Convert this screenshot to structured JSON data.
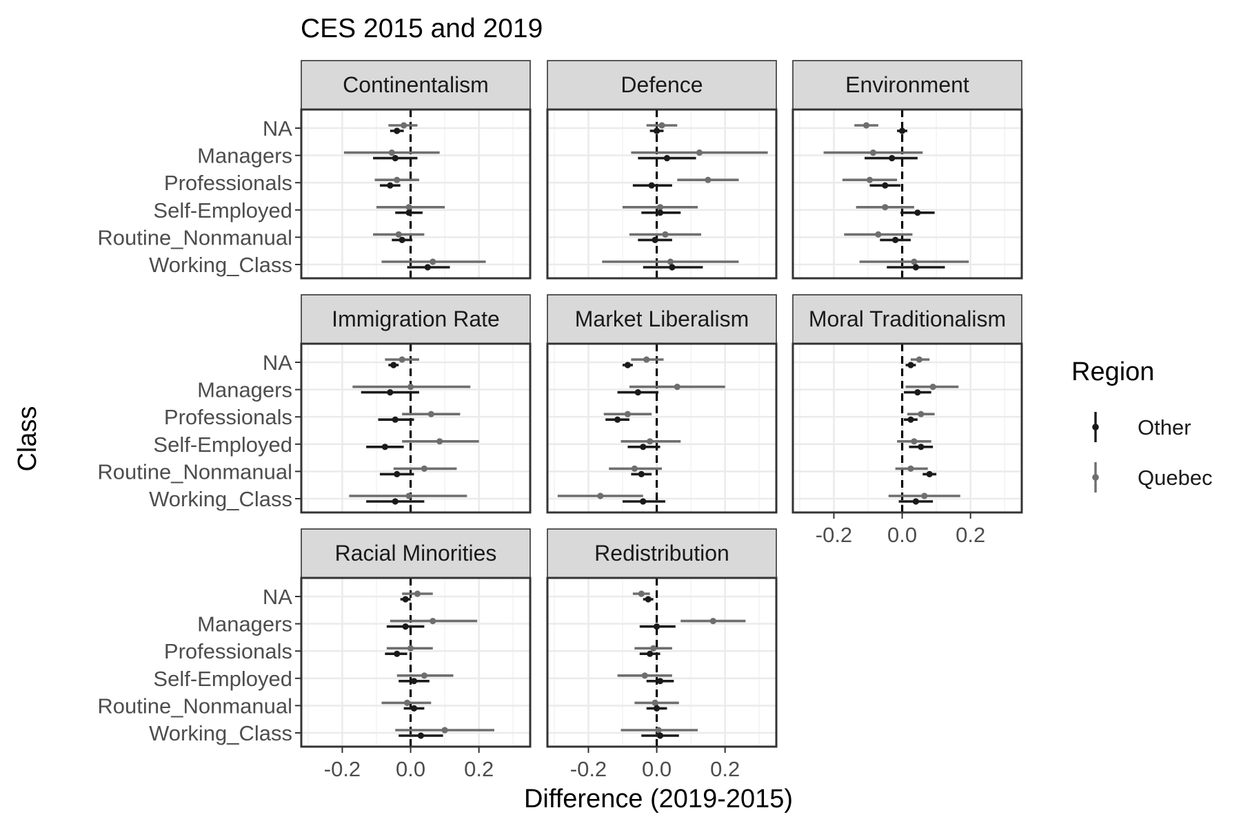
{
  "chart_data": {
    "type": "scatter",
    "subtype": "faceted point-range (dot-and-whisker) plot",
    "title": "CES 2015 and 2019",
    "xlabel": "Difference (2019-2015)",
    "ylabel": "Class",
    "xlim": [
      -0.32,
      0.35
    ],
    "x_ticks": [
      -0.2,
      0.0,
      0.2
    ],
    "x_tick_labels": [
      "-0.2",
      "0.0",
      "0.2"
    ],
    "categories": [
      "NA",
      "Managers",
      "Professionals",
      "Self-Employed",
      "Routine_Nonmanual",
      "Working_Class"
    ],
    "reference_line": {
      "x": 0,
      "style": "dashed"
    },
    "grid": true,
    "legend": {
      "title": "Region",
      "position": "right",
      "items": [
        {
          "label": "Other",
          "color": "#1a1a1a"
        },
        {
          "label": "Quebec",
          "color": "#6e6e6e"
        }
      ]
    },
    "colors": {
      "Other": "#1a1a1a",
      "Quebec": "#6e6e6e",
      "strip": "#d9d9d9",
      "panel_border": "#333333",
      "grid": "#ebebeb"
    },
    "facets": [
      {
        "label": "Continentalism",
        "series": [
          {
            "name": "Other",
            "points": [
              {
                "y": "NA",
                "x": -0.04,
                "lo": -0.06,
                "hi": -0.02
              },
              {
                "y": "Managers",
                "x": -0.045,
                "lo": -0.11,
                "hi": 0.02
              },
              {
                "y": "Professionals",
                "x": -0.06,
                "lo": -0.09,
                "hi": -0.03
              },
              {
                "y": "Self-Employed",
                "x": -0.005,
                "lo": -0.045,
                "hi": 0.035
              },
              {
                "y": "Routine_Nonmanual",
                "x": -0.025,
                "lo": -0.055,
                "hi": 0.005
              },
              {
                "y": "Working_Class",
                "x": 0.05,
                "lo": -0.01,
                "hi": 0.115
              }
            ]
          },
          {
            "name": "Quebec",
            "points": [
              {
                "y": "NA",
                "x": -0.02,
                "lo": -0.065,
                "hi": 0.02
              },
              {
                "y": "Managers",
                "x": -0.055,
                "lo": -0.195,
                "hi": 0.085
              },
              {
                "y": "Professionals",
                "x": -0.04,
                "lo": -0.105,
                "hi": 0.025
              },
              {
                "y": "Self-Employed",
                "x": -0.005,
                "lo": -0.1,
                "hi": 0.1
              },
              {
                "y": "Routine_Nonmanual",
                "x": -0.035,
                "lo": -0.11,
                "hi": 0.04
              },
              {
                "y": "Working_Class",
                "x": 0.065,
                "lo": -0.085,
                "hi": 0.22
              }
            ]
          }
        ]
      },
      {
        "label": "Defence",
        "series": [
          {
            "name": "Other",
            "points": [
              {
                "y": "NA",
                "x": 0.0,
                "lo": -0.02,
                "hi": 0.02
              },
              {
                "y": "Managers",
                "x": 0.03,
                "lo": -0.055,
                "hi": 0.115
              },
              {
                "y": "Professionals",
                "x": -0.015,
                "lo": -0.07,
                "hi": 0.045
              },
              {
                "y": "Self-Employed",
                "x": 0.01,
                "lo": -0.045,
                "hi": 0.07
              },
              {
                "y": "Routine_Nonmanual",
                "x": -0.005,
                "lo": -0.055,
                "hi": 0.045
              },
              {
                "y": "Working_Class",
                "x": 0.045,
                "lo": -0.04,
                "hi": 0.135
              }
            ]
          },
          {
            "name": "Quebec",
            "points": [
              {
                "y": "NA",
                "x": 0.015,
                "lo": -0.03,
                "hi": 0.06
              },
              {
                "y": "Managers",
                "x": 0.125,
                "lo": -0.075,
                "hi": 0.325
              },
              {
                "y": "Professionals",
                "x": 0.15,
                "lo": 0.06,
                "hi": 0.24
              },
              {
                "y": "Self-Employed",
                "x": 0.01,
                "lo": -0.1,
                "hi": 0.12
              },
              {
                "y": "Routine_Nonmanual",
                "x": 0.025,
                "lo": -0.08,
                "hi": 0.13
              },
              {
                "y": "Working_Class",
                "x": 0.04,
                "lo": -0.16,
                "hi": 0.24
              }
            ]
          }
        ]
      },
      {
        "label": "Environment",
        "series": [
          {
            "name": "Other",
            "points": [
              {
                "y": "NA",
                "x": 0.0,
                "lo": -0.015,
                "hi": 0.015
              },
              {
                "y": "Managers",
                "x": -0.03,
                "lo": -0.11,
                "hi": 0.045
              },
              {
                "y": "Professionals",
                "x": -0.05,
                "lo": -0.095,
                "hi": -0.005
              },
              {
                "y": "Self-Employed",
                "x": 0.045,
                "lo": -0.005,
                "hi": 0.095
              },
              {
                "y": "Routine_Nonmanual",
                "x": -0.02,
                "lo": -0.065,
                "hi": 0.025
              },
              {
                "y": "Working_Class",
                "x": 0.04,
                "lo": -0.045,
                "hi": 0.125
              }
            ]
          },
          {
            "name": "Quebec",
            "points": [
              {
                "y": "NA",
                "x": -0.105,
                "lo": -0.14,
                "hi": -0.07
              },
              {
                "y": "Managers",
                "x": -0.085,
                "lo": -0.23,
                "hi": 0.06
              },
              {
                "y": "Professionals",
                "x": -0.095,
                "lo": -0.175,
                "hi": -0.015
              },
              {
                "y": "Self-Employed",
                "x": -0.05,
                "lo": -0.135,
                "hi": 0.035
              },
              {
                "y": "Routine_Nonmanual",
                "x": -0.07,
                "lo": -0.17,
                "hi": 0.03
              },
              {
                "y": "Working_Class",
                "x": 0.035,
                "lo": -0.125,
                "hi": 0.195
              }
            ]
          }
        ]
      },
      {
        "label": "Immigration Rate",
        "series": [
          {
            "name": "Other",
            "points": [
              {
                "y": "NA",
                "x": -0.05,
                "lo": -0.065,
                "hi": -0.035
              },
              {
                "y": "Managers",
                "x": -0.06,
                "lo": -0.145,
                "hi": 0.025
              },
              {
                "y": "Professionals",
                "x": -0.045,
                "lo": -0.095,
                "hi": 0.01
              },
              {
                "y": "Self-Employed",
                "x": -0.075,
                "lo": -0.13,
                "hi": -0.02
              },
              {
                "y": "Routine_Nonmanual",
                "x": -0.04,
                "lo": -0.09,
                "hi": 0.01
              },
              {
                "y": "Working_Class",
                "x": -0.045,
                "lo": -0.13,
                "hi": 0.04
              }
            ]
          },
          {
            "name": "Quebec",
            "points": [
              {
                "y": "NA",
                "x": -0.025,
                "lo": -0.075,
                "hi": 0.025
              },
              {
                "y": "Managers",
                "x": 0.0,
                "lo": -0.17,
                "hi": 0.175
              },
              {
                "y": "Professionals",
                "x": 0.06,
                "lo": -0.025,
                "hi": 0.145
              },
              {
                "y": "Self-Employed",
                "x": 0.085,
                "lo": -0.025,
                "hi": 0.2
              },
              {
                "y": "Routine_Nonmanual",
                "x": 0.04,
                "lo": -0.05,
                "hi": 0.135
              },
              {
                "y": "Working_Class",
                "x": -0.005,
                "lo": -0.18,
                "hi": 0.165
              }
            ]
          }
        ]
      },
      {
        "label": "Market Liberalism",
        "series": [
          {
            "name": "Other",
            "points": [
              {
                "y": "NA",
                "x": -0.085,
                "lo": -0.1,
                "hi": -0.07
              },
              {
                "y": "Managers",
                "x": -0.055,
                "lo": -0.115,
                "hi": 0.005
              },
              {
                "y": "Professionals",
                "x": -0.115,
                "lo": -0.15,
                "hi": -0.08
              },
              {
                "y": "Self-Employed",
                "x": -0.04,
                "lo": -0.085,
                "hi": 0.01
              },
              {
                "y": "Routine_Nonmanual",
                "x": -0.045,
                "lo": -0.075,
                "hi": -0.015
              },
              {
                "y": "Working_Class",
                "x": -0.04,
                "lo": -0.1,
                "hi": 0.025
              }
            ]
          },
          {
            "name": "Quebec",
            "points": [
              {
                "y": "NA",
                "x": -0.03,
                "lo": -0.075,
                "hi": 0.02
              },
              {
                "y": "Managers",
                "x": 0.06,
                "lo": -0.08,
                "hi": 0.2
              },
              {
                "y": "Professionals",
                "x": -0.085,
                "lo": -0.155,
                "hi": -0.015
              },
              {
                "y": "Self-Employed",
                "x": -0.02,
                "lo": -0.105,
                "hi": 0.07
              },
              {
                "y": "Routine_Nonmanual",
                "x": -0.065,
                "lo": -0.14,
                "hi": 0.015
              },
              {
                "y": "Working_Class",
                "x": -0.165,
                "lo": -0.29,
                "hi": -0.04
              }
            ]
          }
        ]
      },
      {
        "label": "Moral Traditionalism",
        "series": [
          {
            "name": "Other",
            "points": [
              {
                "y": "NA",
                "x": 0.025,
                "lo": 0.01,
                "hi": 0.04
              },
              {
                "y": "Managers",
                "x": 0.045,
                "lo": 0.005,
                "hi": 0.085
              },
              {
                "y": "Professionals",
                "x": 0.025,
                "lo": 0.005,
                "hi": 0.045
              },
              {
                "y": "Self-Employed",
                "x": 0.055,
                "lo": 0.02,
                "hi": 0.09
              },
              {
                "y": "Routine_Nonmanual",
                "x": 0.08,
                "lo": 0.06,
                "hi": 0.1
              },
              {
                "y": "Working_Class",
                "x": 0.04,
                "lo": -0.01,
                "hi": 0.09
              }
            ]
          },
          {
            "name": "Quebec",
            "points": [
              {
                "y": "NA",
                "x": 0.05,
                "lo": 0.025,
                "hi": 0.08
              },
              {
                "y": "Managers",
                "x": 0.09,
                "lo": 0.01,
                "hi": 0.165
              },
              {
                "y": "Professionals",
                "x": 0.055,
                "lo": 0.015,
                "hi": 0.095
              },
              {
                "y": "Self-Employed",
                "x": 0.035,
                "lo": -0.015,
                "hi": 0.085
              },
              {
                "y": "Routine_Nonmanual",
                "x": 0.025,
                "lo": -0.02,
                "hi": 0.075
              },
              {
                "y": "Working_Class",
                "x": 0.065,
                "lo": -0.04,
                "hi": 0.17
              }
            ]
          }
        ]
      },
      {
        "label": "Racial Minorities",
        "series": [
          {
            "name": "Other",
            "points": [
              {
                "y": "NA",
                "x": -0.015,
                "lo": -0.03,
                "hi": 0.0
              },
              {
                "y": "Managers",
                "x": -0.015,
                "lo": -0.07,
                "hi": 0.04
              },
              {
                "y": "Professionals",
                "x": -0.04,
                "lo": -0.075,
                "hi": -0.01
              },
              {
                "y": "Self-Employed",
                "x": 0.01,
                "lo": -0.035,
                "hi": 0.055
              },
              {
                "y": "Routine_Nonmanual",
                "x": 0.01,
                "lo": -0.02,
                "hi": 0.04
              },
              {
                "y": "Working_Class",
                "x": 0.03,
                "lo": -0.035,
                "hi": 0.095
              }
            ]
          },
          {
            "name": "Quebec",
            "points": [
              {
                "y": "NA",
                "x": 0.02,
                "lo": -0.025,
                "hi": 0.065
              },
              {
                "y": "Managers",
                "x": 0.065,
                "lo": -0.06,
                "hi": 0.195
              },
              {
                "y": "Professionals",
                "x": 0.0,
                "lo": -0.07,
                "hi": 0.065
              },
              {
                "y": "Self-Employed",
                "x": 0.04,
                "lo": -0.04,
                "hi": 0.125
              },
              {
                "y": "Routine_Nonmanual",
                "x": -0.01,
                "lo": -0.085,
                "hi": 0.06
              },
              {
                "y": "Working_Class",
                "x": 0.1,
                "lo": -0.045,
                "hi": 0.245
              }
            ]
          }
        ]
      },
      {
        "label": "Redistribution",
        "series": [
          {
            "name": "Other",
            "points": [
              {
                "y": "NA",
                "x": -0.025,
                "lo": -0.04,
                "hi": -0.01
              },
              {
                "y": "Managers",
                "x": 0.0,
                "lo": -0.05,
                "hi": 0.055
              },
              {
                "y": "Professionals",
                "x": -0.02,
                "lo": -0.05,
                "hi": 0.01
              },
              {
                "y": "Self-Employed",
                "x": 0.01,
                "lo": -0.03,
                "hi": 0.05
              },
              {
                "y": "Routine_Nonmanual",
                "x": 0.0,
                "lo": -0.03,
                "hi": 0.03
              },
              {
                "y": "Working_Class",
                "x": 0.01,
                "lo": -0.045,
                "hi": 0.065
              }
            ]
          },
          {
            "name": "Quebec",
            "points": [
              {
                "y": "NA",
                "x": -0.045,
                "lo": -0.07,
                "hi": -0.02
              },
              {
                "y": "Managers",
                "x": 0.165,
                "lo": 0.07,
                "hi": 0.26
              },
              {
                "y": "Professionals",
                "x": -0.01,
                "lo": -0.065,
                "hi": 0.045
              },
              {
                "y": "Self-Employed",
                "x": -0.035,
                "lo": -0.115,
                "hi": 0.045
              },
              {
                "y": "Routine_Nonmanual",
                "x": -0.005,
                "lo": -0.065,
                "hi": 0.065
              },
              {
                "y": "Working_Class",
                "x": 0.005,
                "lo": -0.105,
                "hi": 0.12
              }
            ]
          }
        ]
      }
    ]
  }
}
